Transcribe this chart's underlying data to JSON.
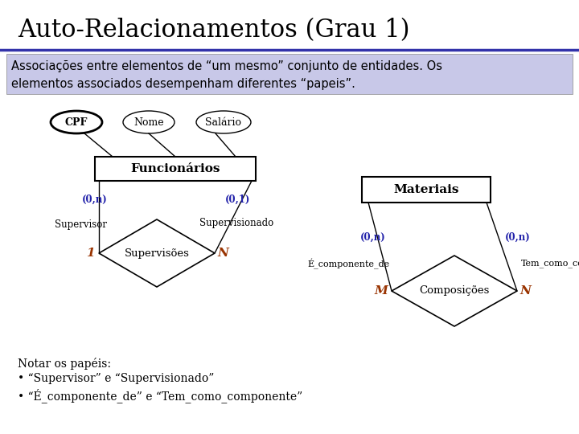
{
  "title": "Auto-Relacionamentos (Grau 1)",
  "subtitle": "Associações entre elementos de “um mesmo” conjunto de entidades. Os\nelementos associados desempenham diferentes “papeis”.",
  "subtitle_bg": "#c8c8e8",
  "bg_color": "#ffffff",
  "title_color": "#000000",
  "title_fontsize": 22,
  "subtitle_fontsize": 10.5,
  "blue_color": "#2222aa",
  "orange_color": "#993300",
  "black_color": "#000000",
  "line_color": "#3333aa",
  "note_line1": "Notar os papéis:",
  "note_line2": "• “Supervisor” e “Supervisionado”",
  "note_line3": "• “É_componente_de” e “Tem_como_componente”"
}
